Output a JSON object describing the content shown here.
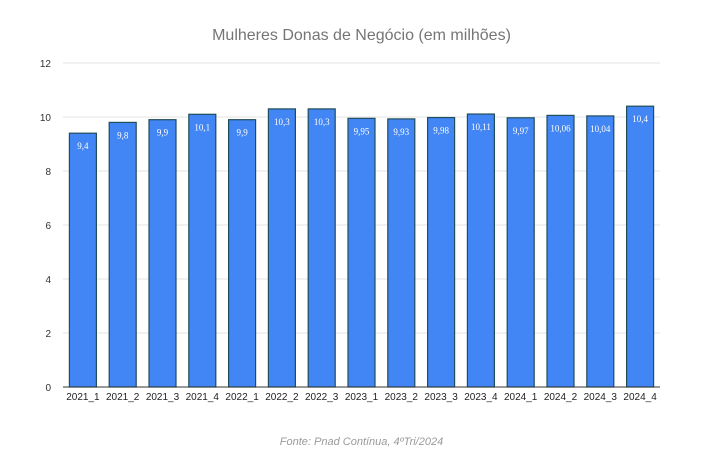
{
  "chart_data": {
    "type": "bar",
    "title": "Mulheres Donas de Negócio (em milhões)",
    "source": "Fonte: Pnad Contínua, 4ºTri/2024",
    "categories": [
      "2021_1",
      "2021_2",
      "2021_3",
      "2021_4",
      "2022_1",
      "2022_2",
      "2022_3",
      "2023_1",
      "2023_2",
      "2023_3",
      "2023_4",
      "2024_1",
      "2024_2",
      "2024_3",
      "2024_4"
    ],
    "values": [
      9.4,
      9.8,
      9.9,
      10.1,
      9.9,
      10.3,
      10.3,
      9.95,
      9.93,
      9.98,
      10.11,
      9.97,
      10.06,
      10.04,
      10.4
    ],
    "data_labels": [
      "9,4",
      "9,8",
      "9,9",
      "10,1",
      "9,9",
      "10,3",
      "10,3",
      "9,95",
      "9,93",
      "9,98",
      "10,11",
      "9,97",
      "10,06",
      "10,04",
      "10,4"
    ],
    "ylim": [
      0,
      12
    ],
    "yticks": [
      "0",
      "2",
      "4",
      "6",
      "8",
      "10",
      "12"
    ],
    "grid": true,
    "bar_color": "#4285f4",
    "bar_outline_color": "#1f4d5a",
    "label_color": "#ffffff"
  }
}
